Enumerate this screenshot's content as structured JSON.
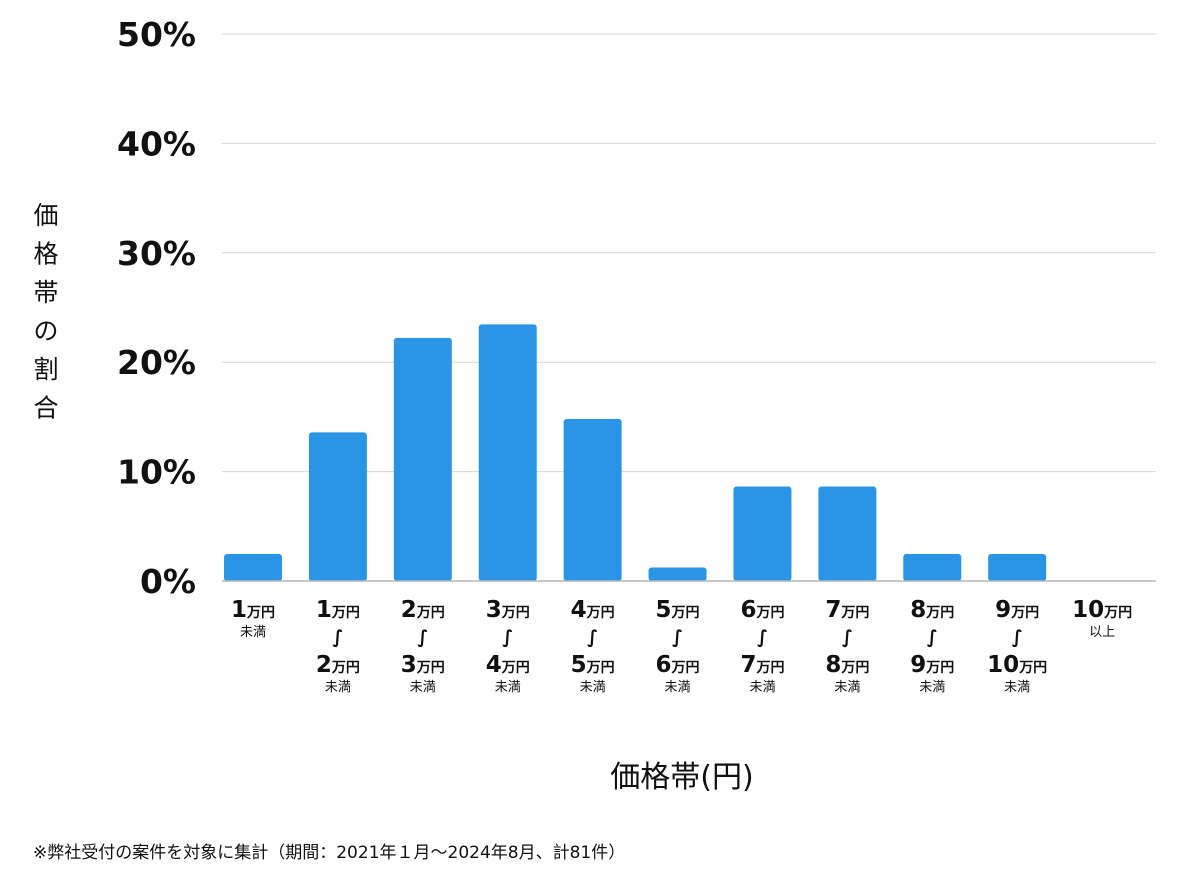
{
  "chart_data": {
    "type": "bar",
    "categories": [
      {
        "from": "",
        "from_unit": "",
        "to": "1",
        "to_unit": "万円",
        "suffix": "未満"
      },
      {
        "from": "1",
        "from_unit": "万円",
        "to": "2",
        "to_unit": "万円",
        "suffix": "未満"
      },
      {
        "from": "2",
        "from_unit": "万円",
        "to": "3",
        "to_unit": "万円",
        "suffix": "未満"
      },
      {
        "from": "3",
        "from_unit": "万円",
        "to": "4",
        "to_unit": "万円",
        "suffix": "未満"
      },
      {
        "from": "4",
        "from_unit": "万円",
        "to": "5",
        "to_unit": "万円",
        "suffix": "未満"
      },
      {
        "from": "5",
        "from_unit": "万円",
        "to": "6",
        "to_unit": "万円",
        "suffix": "未満"
      },
      {
        "from": "6",
        "from_unit": "万円",
        "to": "7",
        "to_unit": "万円",
        "suffix": "未満"
      },
      {
        "from": "7",
        "from_unit": "万円",
        "to": "8",
        "to_unit": "万円",
        "suffix": "未満"
      },
      {
        "from": "8",
        "from_unit": "万円",
        "to": "9",
        "to_unit": "万円",
        "suffix": "未満"
      },
      {
        "from": "9",
        "from_unit": "万円",
        "to": "10",
        "to_unit": "万円",
        "suffix": "未満"
      },
      {
        "from": "",
        "from_unit": "",
        "to": "10",
        "to_unit": "万円",
        "suffix": "以上"
      }
    ],
    "range_separator": "∫",
    "values": [
      2.47,
      13.58,
      22.22,
      23.46,
      14.81,
      1.23,
      8.64,
      8.64,
      2.47,
      2.47,
      0
    ],
    "ylim": [
      0,
      50
    ],
    "yticks": [
      0,
      10,
      20,
      30,
      40,
      50
    ],
    "ytick_suffix": "%",
    "xlabel": "価格帯(円)",
    "ylabel": "価格帯の割合",
    "grid": true,
    "bar_color": "#2a94e6",
    "grid_color": "#d6d6d6",
    "axis_color": "#b5b5b5"
  },
  "footnote": "※弊社受付の案件を対象に集計（期間：2021年１月～2024年8月、計81件）"
}
